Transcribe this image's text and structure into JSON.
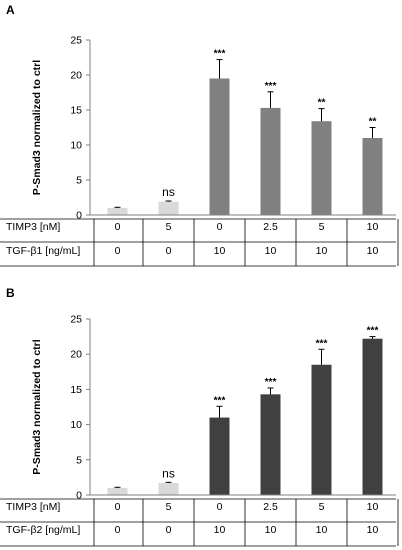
{
  "chart_data": [
    {
      "type": "bar",
      "panel_label": "A",
      "ylabel": "P-Smad3 normalized to ctrl",
      "ylim": [
        0,
        25
      ],
      "yticks": [
        0,
        5,
        10,
        15,
        20,
        25
      ],
      "table_rows": [
        {
          "label": "TIMP3 [nM]",
          "values": [
            "0",
            "5",
            "0",
            "2.5",
            "5",
            "10"
          ]
        },
        {
          "label": "TGF-β1 [ng/mL]",
          "values": [
            "0",
            "0",
            "10",
            "10",
            "10",
            "10"
          ]
        }
      ],
      "values": [
        1.0,
        1.9,
        19.5,
        15.3,
        13.4,
        11.0
      ],
      "errors": [
        0.1,
        0.1,
        2.7,
        2.3,
        1.8,
        1.5
      ],
      "bar_colors": [
        "#d9d9d9",
        "#d9d9d9",
        "#808080",
        "#808080",
        "#808080",
        "#808080"
      ],
      "annotations": [
        "",
        "ns",
        "***",
        "***",
        "**",
        "**"
      ]
    },
    {
      "type": "bar",
      "panel_label": "B",
      "ylabel": "P-Smad3 normalized to ctrl",
      "ylim": [
        0,
        25
      ],
      "yticks": [
        0,
        5,
        10,
        15,
        20,
        25
      ],
      "table_rows": [
        {
          "label": "TIMP3 [nM]",
          "values": [
            "0",
            "5",
            "0",
            "2.5",
            "5",
            "10"
          ]
        },
        {
          "label": "TGF-β2 [ng/mL]",
          "values": [
            "0",
            "0",
            "10",
            "10",
            "10",
            "10"
          ]
        }
      ],
      "values": [
        1.0,
        1.7,
        11.0,
        14.3,
        18.5,
        22.2
      ],
      "errors": [
        0.1,
        0.1,
        1.6,
        0.9,
        2.2,
        0.3
      ],
      "bar_colors": [
        "#d9d9d9",
        "#d9d9d9",
        "#404040",
        "#404040",
        "#404040",
        "#404040"
      ],
      "annotations": [
        "",
        "ns",
        "***",
        "***",
        "***",
        "***"
      ]
    }
  ]
}
